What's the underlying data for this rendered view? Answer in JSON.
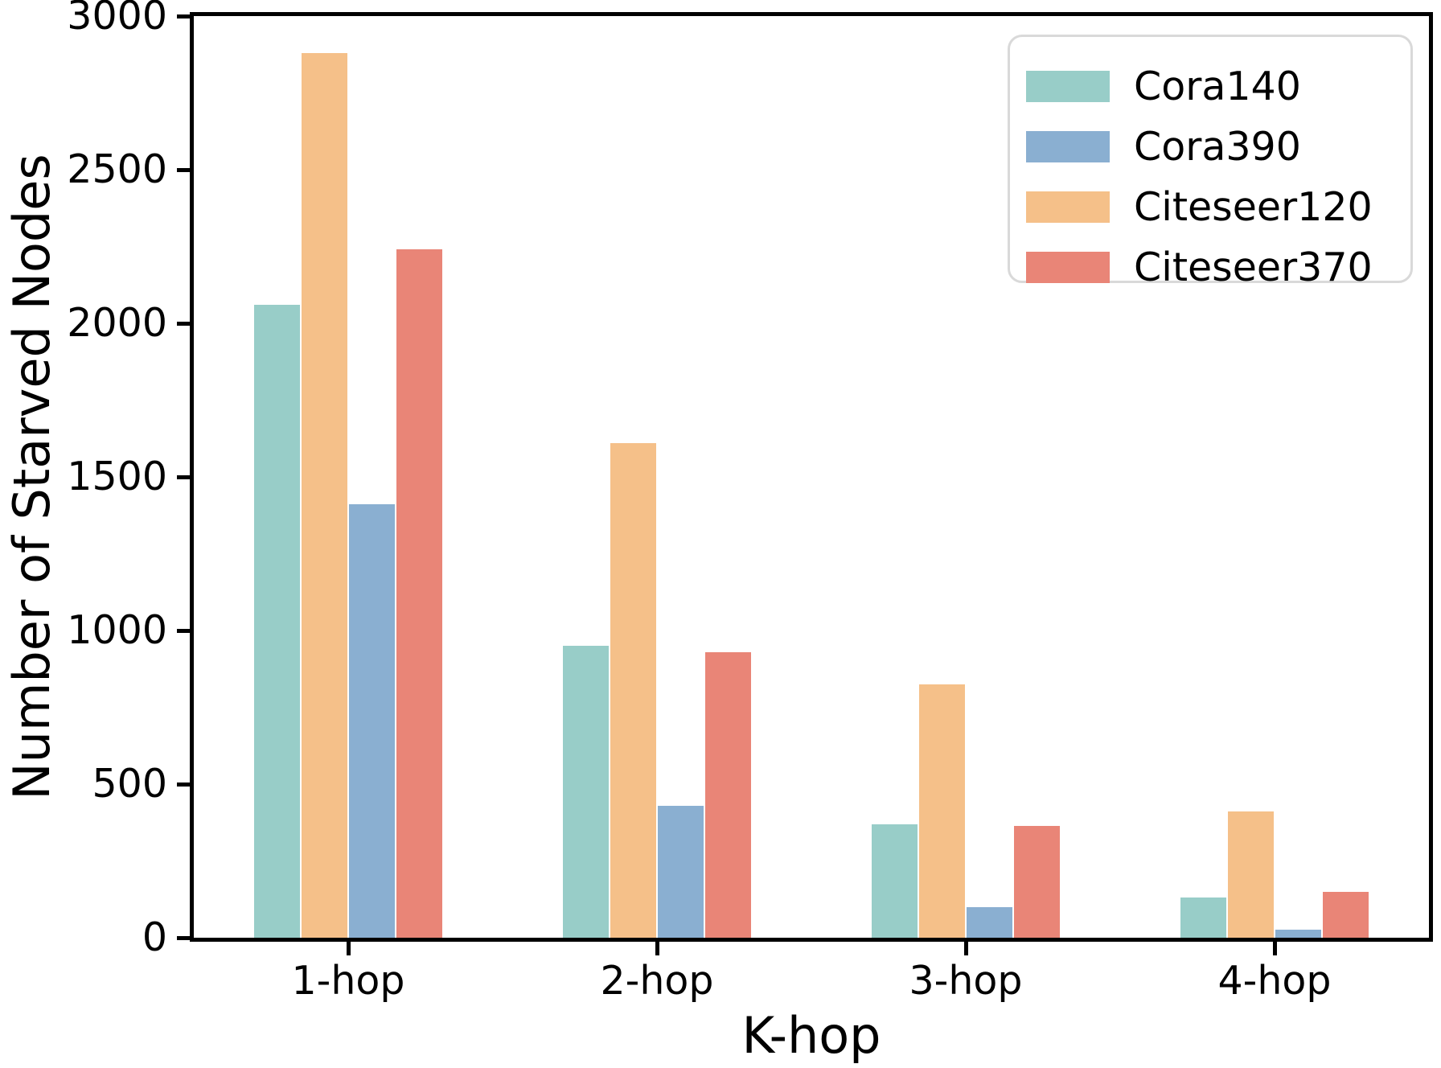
{
  "figure": {
    "background": "#ffffff",
    "axis_color": "#000000",
    "legend_border_color": "#d9d9d9"
  },
  "chart_data": {
    "type": "bar",
    "title": "",
    "xlabel": "K-hop",
    "ylabel": "Number of Starved Nodes",
    "categories": [
      "1-hop",
      "2-hop",
      "3-hop",
      "4-hop"
    ],
    "ylim": [
      0,
      3000
    ],
    "yticks": [
      0,
      500,
      1000,
      1500,
      2000,
      2500,
      3000
    ],
    "ytick_labels": [
      "0",
      "500",
      "1000",
      "1500",
      "2000",
      "2500",
      "3000"
    ],
    "grid": false,
    "legend_position": "upper-right",
    "series": [
      {
        "name": "Cora140",
        "color": "#98CDC8",
        "values": [
          2060,
          950,
          370,
          130
        ]
      },
      {
        "name": "Cora390",
        "color": "#8AAFD1",
        "values": [
          1410,
          430,
          100,
          25
        ]
      },
      {
        "name": "Citeseer120",
        "color": "#F5C089",
        "values": [
          2880,
          1610,
          825,
          410
        ]
      },
      {
        "name": "Citeseer370",
        "color": "#E98577",
        "values": [
          2240,
          930,
          365,
          150
        ]
      }
    ],
    "bar_order": [
      "Cora140",
      "Citeseer120",
      "Cora390",
      "Citeseer370"
    ],
    "legend_entries": [
      "Cora140",
      "Cora390",
      "Citeseer120",
      "Citeseer370"
    ]
  }
}
